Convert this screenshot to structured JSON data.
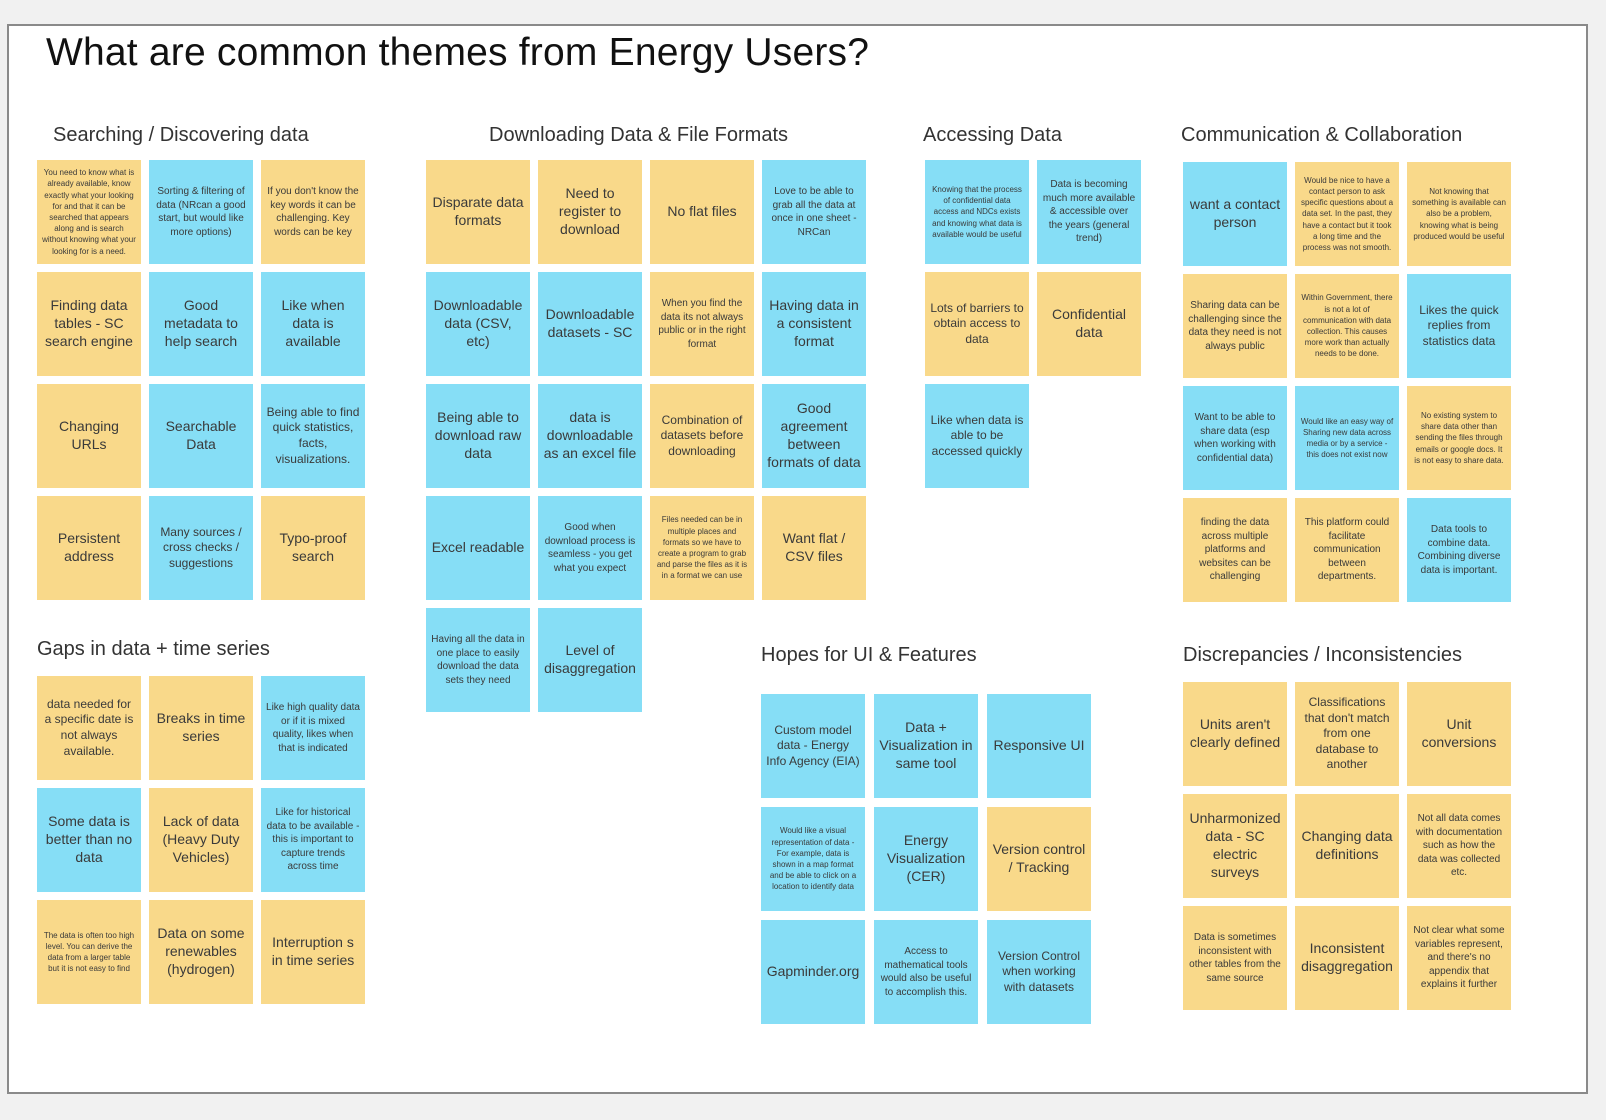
{
  "title": "What are common themes from Energy Users?",
  "groups": [
    {
      "name": "Searching / Discovering data",
      "notes": [
        {
          "text": "You need to know what is already available, know exactly what your looking for and that it can be searched that appears along and is search without knowing what your looking for is a need.",
          "color": "yellow"
        },
        {
          "text": "Sorting & filtering of data (NRcan a good start, but would like more options)",
          "color": "blue"
        },
        {
          "text": "If you don't know the key words it can be challenging. Key words can be key",
          "color": "yellow"
        },
        {
          "text": "Finding data tables - SC search engine",
          "color": "yellow"
        },
        {
          "text": "Good metadata to help search",
          "color": "blue"
        },
        {
          "text": "Like when data is available",
          "color": "blue"
        },
        {
          "text": "Changing URLs",
          "color": "yellow"
        },
        {
          "text": "Searchable Data",
          "color": "blue"
        },
        {
          "text": "Being able to find quick statistics, facts, visualizations.",
          "color": "blue"
        },
        {
          "text": "Persistent address",
          "color": "yellow"
        },
        {
          "text": "Many sources / cross checks / suggestions",
          "color": "blue"
        },
        {
          "text": "Typo-proof search",
          "color": "yellow"
        }
      ]
    },
    {
      "name": "Downloading Data & File Formats",
      "notes": [
        {
          "text": "Disparate data formats",
          "color": "yellow"
        },
        {
          "text": "Need to register to download",
          "color": "yellow"
        },
        {
          "text": "No flat files",
          "color": "yellow"
        },
        {
          "text": "Love to be able to grab all the data at once in one sheet - NRCan",
          "color": "blue"
        },
        {
          "text": "Downloadable data (CSV, etc)",
          "color": "blue"
        },
        {
          "text": "Downloadable datasets - SC",
          "color": "blue"
        },
        {
          "text": "When you find the data its not always public or in the right format",
          "color": "yellow"
        },
        {
          "text": "Having data in a consistent format",
          "color": "blue"
        },
        {
          "text": "Being able to download raw data",
          "color": "blue"
        },
        {
          "text": "data is downloadable as an excel file",
          "color": "blue"
        },
        {
          "text": "Combination of datasets before downloading",
          "color": "yellow"
        },
        {
          "text": "Good agreement between formats of data",
          "color": "blue"
        },
        {
          "text": "Excel readable",
          "color": "blue"
        },
        {
          "text": "Good when download process is seamless - you get what you expect",
          "color": "blue"
        },
        {
          "text": "Files needed can be in multiple places and formats so we have to create a program to grab and parse the files as it is in a format we can use",
          "color": "yellow"
        },
        {
          "text": "Want flat / CSV files",
          "color": "yellow"
        },
        {
          "text": "Having all the data in one place to easily download the data sets they need",
          "color": "blue"
        },
        {
          "text": "Level of disaggregation",
          "color": "blue"
        }
      ]
    },
    {
      "name": "Accessing Data",
      "notes": [
        {
          "text": "Knowing that the process of confidential data access and NDCs exists and knowing what data is available would be useful",
          "color": "blue"
        },
        {
          "text": "Data is becoming much more available & accessible over the years (general trend)",
          "color": "blue"
        },
        {
          "text": "Lots of barriers to obtain access to data",
          "color": "yellow"
        },
        {
          "text": "Confidential data",
          "color": "yellow"
        },
        {
          "text": "Like when data is able to be accessed quickly",
          "color": "blue"
        }
      ]
    },
    {
      "name": "Communication & Collaboration",
      "notes": [
        {
          "text": "want a contact person",
          "color": "blue"
        },
        {
          "text": "Would be nice to have a contact person to ask specific questions about a data set. In the past, they have a contact but it took a long time and the process was not smooth.",
          "color": "yellow"
        },
        {
          "text": "Not knowing that something is available can also be a problem, knowing what is being produced would be useful",
          "color": "yellow"
        },
        {
          "text": "Sharing data can be challenging since the data they need is not always public",
          "color": "yellow"
        },
        {
          "text": "Within Government, there is not a lot of communication with data collection. This causes more work than actually needs to be done.",
          "color": "yellow"
        },
        {
          "text": "Likes the quick replies from statistics data",
          "color": "blue"
        },
        {
          "text": "Want to be able to share data (esp when working with confidential data)",
          "color": "blue"
        },
        {
          "text": "Would like an easy way of Sharing new data across media or by a service - this does not exist now",
          "color": "blue"
        },
        {
          "text": "No existing system to share data other than sending the files through emails or google docs. It is not easy to share data.",
          "color": "yellow"
        },
        {
          "text": "finding the data across multiple platforms and websites can be challenging",
          "color": "yellow"
        },
        {
          "text": "This platform could facilitate communication between departments.",
          "color": "yellow"
        },
        {
          "text": "Data tools to combine data. Combining diverse data is important.",
          "color": "blue"
        }
      ]
    },
    {
      "name": "Gaps in data + time series",
      "notes": [
        {
          "text": "data needed for a specific date is not always available.",
          "color": "yellow"
        },
        {
          "text": "Breaks in time series",
          "color": "yellow"
        },
        {
          "text": "Like high quality data or if it is mixed quality, likes when that is indicated",
          "color": "blue"
        },
        {
          "text": "Some data is better than no data",
          "color": "blue"
        },
        {
          "text": "Lack of data (Heavy Duty Vehicles)",
          "color": "yellow"
        },
        {
          "text": "Like for historical data to be available - this is important to capture trends across time",
          "color": "blue"
        },
        {
          "text": "The data is often too high level. You can derive the data from a larger table but it is not easy to find",
          "color": "yellow"
        },
        {
          "text": "Data on some renewables (hydrogen)",
          "color": "yellow"
        },
        {
          "text": "Interruption s in time series",
          "color": "yellow"
        }
      ]
    },
    {
      "name": "Hopes for UI & Features",
      "notes": [
        {
          "text": "Custom model data - Energy Info Agency (EIA)",
          "color": "blue"
        },
        {
          "text": "Data + Visualization in same tool",
          "color": "blue"
        },
        {
          "text": "Responsive UI",
          "color": "blue"
        },
        {
          "text": "Would like a visual representation of data - For example, data is shown in a map format and be able to click on a location to identify data",
          "color": "blue"
        },
        {
          "text": "Energy Visualization (CER)",
          "color": "blue"
        },
        {
          "text": "Version control / Tracking",
          "color": "yellow"
        },
        {
          "text": "Gapminder.org",
          "color": "blue"
        },
        {
          "text": "Access to mathematical tools would also be useful to accomplish this.",
          "color": "blue"
        },
        {
          "text": "Version Control when working with datasets",
          "color": "blue"
        }
      ]
    },
    {
      "name": "Discrepancies / Inconsistencies",
      "notes": [
        {
          "text": "Units aren't clearly defined",
          "color": "yellow"
        },
        {
          "text": "Classifications that don't match from one database to another",
          "color": "yellow"
        },
        {
          "text": "Unit conversions",
          "color": "yellow"
        },
        {
          "text": "Unharmonized data - SC electric surveys",
          "color": "yellow"
        },
        {
          "text": "Changing data definitions",
          "color": "yellow"
        },
        {
          "text": "Not all data comes with documentation such as how the data was collected etc.",
          "color": "yellow"
        },
        {
          "text": "Data is sometimes inconsistent with other tables from the same source",
          "color": "yellow"
        },
        {
          "text": "Inconsistent disaggregation",
          "color": "yellow"
        },
        {
          "text": "Not clear what some variables represent, and there's no appendix that explains it further",
          "color": "yellow"
        }
      ]
    }
  ]
}
